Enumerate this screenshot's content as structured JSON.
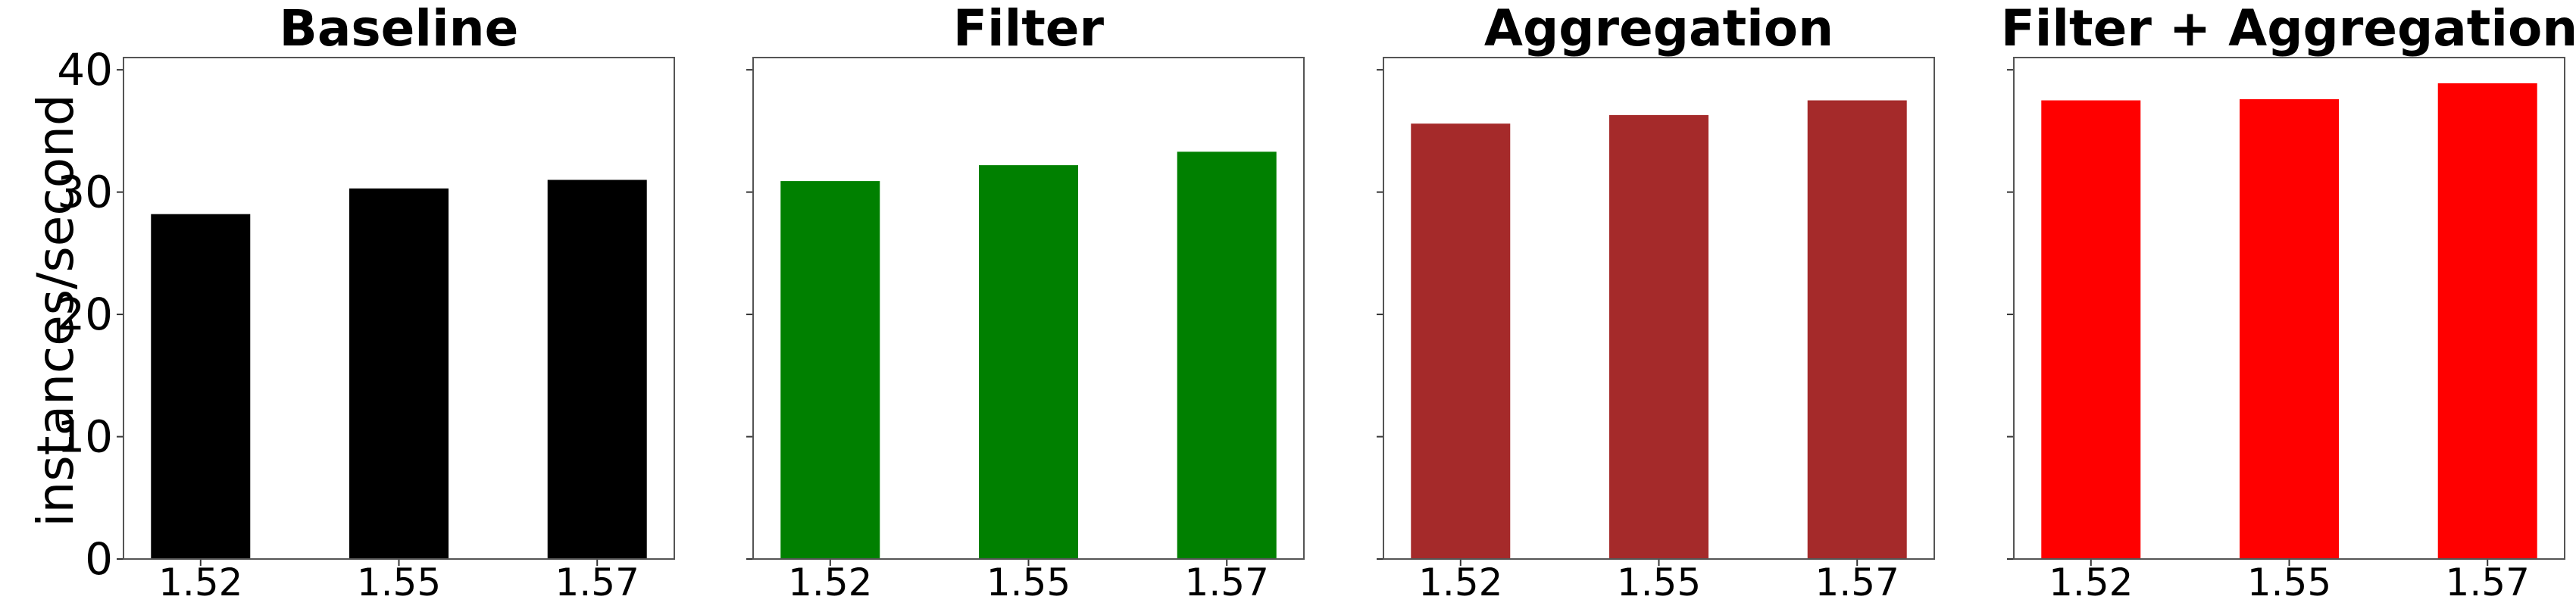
{
  "chart_data": [
    {
      "type": "bar",
      "title": "Baseline",
      "categories": [
        "1.52",
        "1.55",
        "1.57"
      ],
      "values": [
        28.2,
        30.3,
        31.0
      ],
      "ylabel": "instances/second",
      "ylim": [
        0,
        41
      ],
      "yticks": [
        "0",
        "10",
        "20",
        "30",
        "40"
      ],
      "color": "#000000"
    },
    {
      "type": "bar",
      "title": "Filter",
      "categories": [
        "1.52",
        "1.55",
        "1.57"
      ],
      "values": [
        30.9,
        32.2,
        33.3
      ],
      "ylim": [
        0,
        41
      ],
      "color": "#008000"
    },
    {
      "type": "bar",
      "title": "Aggregation",
      "categories": [
        "1.52",
        "1.55",
        "1.57"
      ],
      "values": [
        35.6,
        36.3,
        37.5
      ],
      "ylim": [
        0,
        41
      ],
      "color": "#a52a2a"
    },
    {
      "type": "bar",
      "title": "Filter + Aggregation",
      "categories": [
        "1.52",
        "1.55",
        "1.57"
      ],
      "values": [
        37.5,
        37.6,
        38.9
      ],
      "ylim": [
        0,
        41
      ],
      "color": "#ff0000"
    }
  ]
}
